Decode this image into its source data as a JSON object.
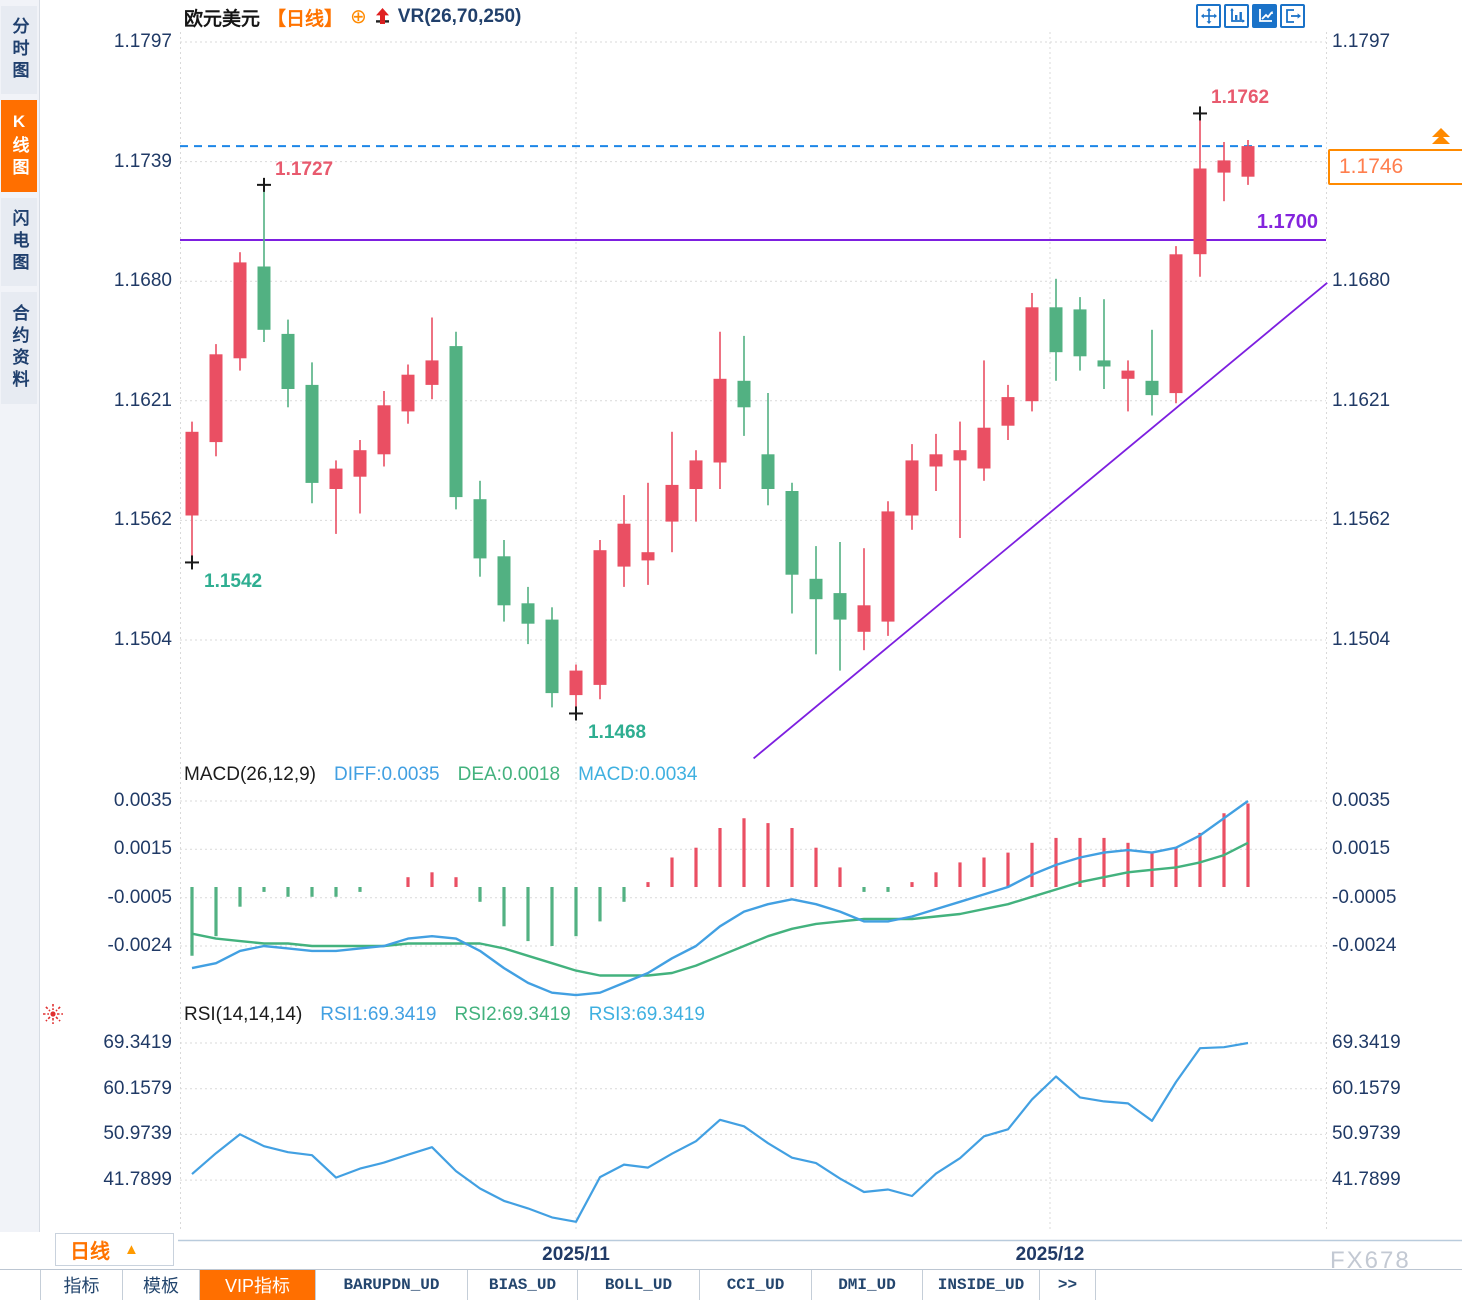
{
  "header": {
    "symbol": "欧元美元",
    "period": "【日线】",
    "plus_icon": "⊕",
    "indicator": "VR(26,70,250)",
    "toolbar_icons": [
      "move-icon",
      "axis-chart-icon",
      "active-chart-icon",
      "exit-icon"
    ]
  },
  "sidebar": {
    "tabs": [
      {
        "label": "分时图",
        "active": false
      },
      {
        "label": "K线图",
        "active": true
      },
      {
        "label": "闪电图",
        "active": false
      },
      {
        "label": "合约资料",
        "active": false
      }
    ]
  },
  "price_box": {
    "value": "1.1746"
  },
  "colors": {
    "up": "#ea4f63",
    "down": "#52b182",
    "accent_orange": "#ff6f00",
    "blue_line": "#42a0e2",
    "green_line": "#43b27e",
    "cyan_line": "#3fb0e0",
    "purple": "#7d1fe0",
    "dashed_blue": "#1c86e8",
    "high_label": "#e85a6e",
    "low_label": "#2fae91",
    "axis_text": "#203a66"
  },
  "chart_data": [
    {
      "type": "candlestick",
      "title": "欧元美元 日线",
      "y_ticks": [
        "1.1797",
        "1.1739",
        "1.1680",
        "1.1621",
        "1.1562",
        "1.1504"
      ],
      "y_ticks_right": [
        "1.1797",
        "1.1680",
        "1.1621",
        "1.1562",
        "1.1504"
      ],
      "x_labels": [
        {
          "label": "2025/11",
          "index": 16
        },
        {
          "label": "2025/12",
          "index": 35.75
        }
      ],
      "candles": [
        [
          1.1565,
          1.1611,
          1.1542,
          1.1606
        ],
        [
          1.1601,
          1.1649,
          1.1594,
          1.1644
        ],
        [
          1.1642,
          1.1694,
          1.1636,
          1.1689
        ],
        [
          1.1687,
          1.1727,
          1.165,
          1.1656
        ],
        [
          1.1654,
          1.1661,
          1.1618,
          1.1627
        ],
        [
          1.1629,
          1.164,
          1.1571,
          1.1581
        ],
        [
          1.1578,
          1.1592,
          1.1556,
          1.1588
        ],
        [
          1.1584,
          1.1602,
          1.1566,
          1.1597
        ],
        [
          1.1595,
          1.1626,
          1.1589,
          1.1619
        ],
        [
          1.1616,
          1.1639,
          1.161,
          1.1634
        ],
        [
          1.1629,
          1.1662,
          1.1622,
          1.1641
        ],
        [
          1.1648,
          1.1655,
          1.1568,
          1.1574
        ],
        [
          1.1573,
          1.1582,
          1.1535,
          1.1544
        ],
        [
          1.1545,
          1.1553,
          1.1513,
          1.1521
        ],
        [
          1.1522,
          1.153,
          1.1502,
          1.1512
        ],
        [
          1.1514,
          1.152,
          1.1471,
          1.1478
        ],
        [
          1.1477,
          1.1492,
          1.1468,
          1.1489
        ],
        [
          1.1482,
          1.1553,
          1.1475,
          1.1548
        ],
        [
          1.154,
          1.1575,
          1.153,
          1.1561
        ],
        [
          1.1543,
          1.1581,
          1.1531,
          1.1547
        ],
        [
          1.1562,
          1.1606,
          1.1547,
          1.158
        ],
        [
          1.1578,
          1.1597,
          1.1562,
          1.1592
        ],
        [
          1.1591,
          1.1655,
          1.1578,
          1.1632
        ],
        [
          1.1631,
          1.1653,
          1.1604,
          1.1618
        ],
        [
          1.1595,
          1.1625,
          1.157,
          1.1578
        ],
        [
          1.1577,
          1.1581,
          1.1517,
          1.1536
        ],
        [
          1.1534,
          1.155,
          1.1497,
          1.1524
        ],
        [
          1.1527,
          1.1552,
          1.1489,
          1.1514
        ],
        [
          1.1508,
          1.1549,
          1.1499,
          1.1521
        ],
        [
          1.1513,
          1.1572,
          1.1506,
          1.1567
        ],
        [
          1.1565,
          1.16,
          1.1558,
          1.1592
        ],
        [
          1.1589,
          1.1605,
          1.1577,
          1.1595
        ],
        [
          1.1592,
          1.1611,
          1.1554,
          1.1597
        ],
        [
          1.1588,
          1.1641,
          1.1582,
          1.1608
        ],
        [
          1.1609,
          1.1629,
          1.1602,
          1.1623
        ],
        [
          1.1621,
          1.1674,
          1.1616,
          1.1667
        ],
        [
          1.1667,
          1.1681,
          1.1631,
          1.1645
        ],
        [
          1.1666,
          1.1672,
          1.1636,
          1.1643
        ],
        [
          1.1641,
          1.1671,
          1.1627,
          1.1638
        ],
        [
          1.1632,
          1.1641,
          1.1616,
          1.1636
        ],
        [
          1.1631,
          1.1656,
          1.1614,
          1.1624
        ],
        [
          1.1625,
          1.1697,
          1.162,
          1.1693
        ],
        [
          1.1693,
          1.1762,
          1.1682,
          1.1735
        ],
        [
          1.1733,
          1.1748,
          1.1719,
          1.1739
        ],
        [
          1.1731,
          1.1749,
          1.1727,
          1.1746
        ]
      ],
      "markers": [
        {
          "index": 0,
          "price": 1.1542,
          "side": "low",
          "label": "1.1542"
        },
        {
          "index": 3,
          "price": 1.1727,
          "side": "high",
          "label": "1.1727"
        },
        {
          "index": 16,
          "price": 1.1468,
          "side": "low",
          "label": "1.1468"
        },
        {
          "index": 42,
          "price": 1.1762,
          "side": "high",
          "label": "1.1762"
        }
      ],
      "overlays": {
        "current_price_line": {
          "value": 1.1746,
          "style": "dashed"
        },
        "support_line": {
          "value": 1.17,
          "label": "1.1700"
        },
        "trendline": {
          "from": {
            "index": 23.4,
            "price": 1.1446
          },
          "to": {
            "index": 47.3,
            "price": 1.1679
          }
        }
      }
    },
    {
      "type": "macd",
      "params_label": "MACD(26,12,9)",
      "legend": [
        {
          "label": "DIFF:0.0035",
          "color": "#42a0e2"
        },
        {
          "label": "DEA:0.0018",
          "color": "#43b27e"
        },
        {
          "label": "MACD:0.0034",
          "color": "#3fb0e0"
        }
      ],
      "y_ticks": [
        "0.0035",
        "0.0015",
        "-0.0005",
        "-0.0024"
      ],
      "diff": [
        -0.0033,
        -0.0031,
        -0.0026,
        -0.0024,
        -0.0025,
        -0.0026,
        -0.0026,
        -0.0025,
        -0.0024,
        -0.0021,
        -0.002,
        -0.0021,
        -0.0026,
        -0.0033,
        -0.0039,
        -0.0043,
        -0.0044,
        -0.0043,
        -0.0039,
        -0.0035,
        -0.0029,
        -0.0024,
        -0.0016,
        -0.001,
        -0.0007,
        -0.0005,
        -0.0007,
        -0.001,
        -0.0014,
        -0.0014,
        -0.0012,
        -0.0009,
        -0.0006,
        -0.0003,
        0.0,
        0.0005,
        0.0009,
        0.0012,
        0.0014,
        0.0015,
        0.0014,
        0.0016,
        0.0021,
        0.0028,
        0.0035
      ],
      "dea": [
        -0.0019,
        -0.0021,
        -0.0022,
        -0.0023,
        -0.0023,
        -0.0024,
        -0.0024,
        -0.0024,
        -0.0024,
        -0.0023,
        -0.0023,
        -0.0023,
        -0.0023,
        -0.0025,
        -0.0028,
        -0.0031,
        -0.0034,
        -0.0036,
        -0.0036,
        -0.0036,
        -0.0035,
        -0.0032,
        -0.0028,
        -0.0024,
        -0.002,
        -0.0017,
        -0.0015,
        -0.0014,
        -0.0013,
        -0.0013,
        -0.0013,
        -0.0012,
        -0.0011,
        -0.0009,
        -0.0007,
        -0.0004,
        -0.0001,
        0.0002,
        0.0004,
        0.0006,
        0.0007,
        0.0008,
        0.001,
        0.0013,
        0.0018
      ]
    },
    {
      "type": "rsi",
      "params_label": "RSI(14,14,14)",
      "legend": [
        {
          "label": "RSI1:69.3419",
          "color": "#42a0e2"
        },
        {
          "label": "RSI2:69.3419",
          "color": "#43b27e"
        },
        {
          "label": "RSI3:69.3419",
          "color": "#3fb0e0"
        }
      ],
      "y_ticks": [
        "69.3419",
        "60.1579",
        "50.9739",
        "41.7899"
      ],
      "values": [
        43.0,
        47.2,
        51.0,
        48.6,
        47.4,
        46.8,
        42.3,
        44.1,
        45.3,
        46.9,
        48.4,
        43.6,
        40.1,
        37.6,
        36.1,
        34.3,
        33.4,
        42.4,
        44.9,
        44.3,
        47.1,
        49.6,
        53.9,
        52.6,
        49.2,
        46.3,
        45.2,
        42.1,
        39.4,
        39.9,
        38.6,
        43.1,
        46.2,
        50.6,
        52.0,
        58.0,
        62.6,
        58.4,
        57.6,
        57.2,
        53.7,
        61.5,
        68.3,
        68.5,
        69.3419
      ]
    }
  ],
  "bottom": {
    "period_button": {
      "label": "日线",
      "arrow": "▲"
    },
    "tabs": [
      {
        "label": "指标",
        "active": false,
        "mono": false
      },
      {
        "label": "模板",
        "active": false,
        "mono": false
      },
      {
        "label": "VIP指标",
        "active": true,
        "mono": false
      },
      {
        "label": "BARUPDN_UD",
        "active": false,
        "mono": true
      },
      {
        "label": "BIAS_UD",
        "active": false,
        "mono": true
      },
      {
        "label": "BOLL_UD",
        "active": false,
        "mono": true
      },
      {
        "label": "CCI_UD",
        "active": false,
        "mono": true
      },
      {
        "label": "DMI_UD",
        "active": false,
        "mono": true
      },
      {
        "label": "INSIDE_UD",
        "active": false,
        "mono": true
      },
      {
        "label": ">>",
        "active": false,
        "mono": true
      }
    ],
    "trailing_dashes": "– –  – –",
    "watermark": "FX678"
  }
}
